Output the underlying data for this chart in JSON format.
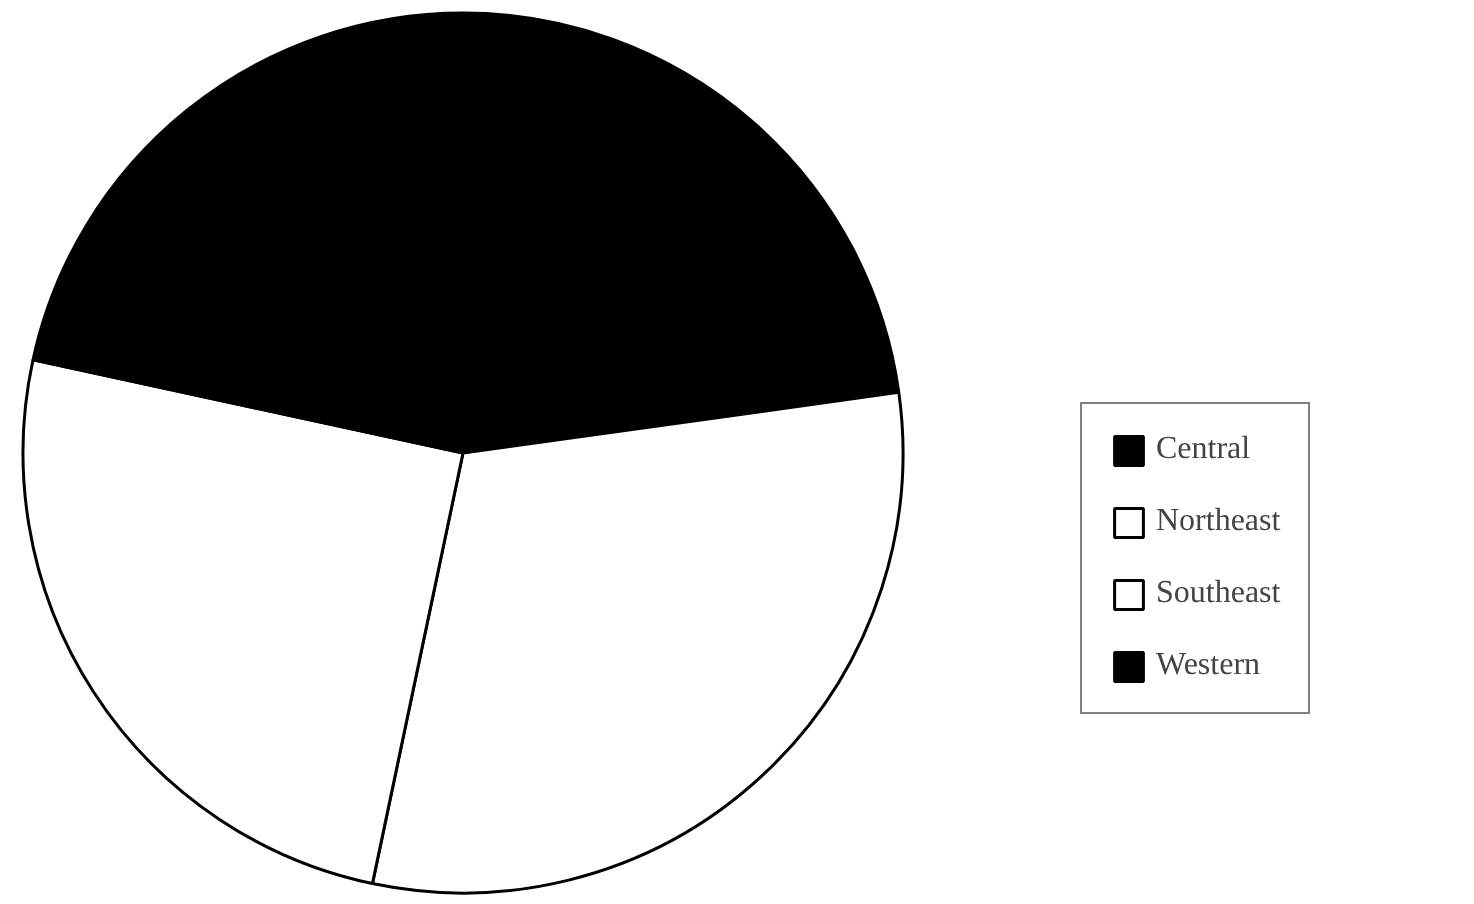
{
  "chart_data": {
    "type": "pie",
    "categories": [
      "Central",
      "Northeast",
      "Southeast",
      "Western"
    ],
    "values": [
      22.8,
      30.5,
      25.1,
      21.6
    ],
    "colors": [
      "#000000",
      "#ffffff",
      "#ffffff",
      "#000000"
    ],
    "legend": "right"
  }
}
